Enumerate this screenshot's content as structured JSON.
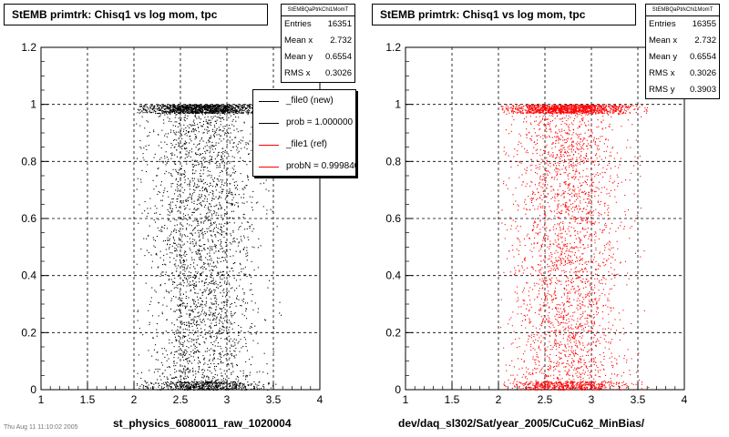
{
  "colors": {
    "file0": "#000000",
    "file1": "#ff0000",
    "grid": "#000000",
    "axis": "#000000"
  },
  "left_panel": {
    "title": "StEMB primtrk: Chisq1 vs log mom, tpc",
    "stats": {
      "name": "StEMBQaPtrkChi1MomT",
      "rows": [
        {
          "label": "Entries",
          "value": "16351"
        },
        {
          "label": "Mean x",
          "value": "2.732"
        },
        {
          "label": "Mean y",
          "value": "0.6554"
        },
        {
          "label": "RMS x",
          "value": "0.3026"
        }
      ]
    },
    "legend": [
      {
        "label": "_file0 (new)",
        "color": "#000000"
      },
      {
        "label": "prob = 1.000000",
        "color": "#000000"
      },
      {
        "label": "_file1 (ref)",
        "color": "#ff0000"
      },
      {
        "label": "probN = 0.999840",
        "color": "#ff0000"
      }
    ],
    "x_title": "st_physics_6080011_raw_1020004"
  },
  "right_panel": {
    "title": "StEMB primtrk: Chisq1 vs log mom, tpc",
    "stats": {
      "name": "StEMBQaPtrkChi1MomT",
      "rows": [
        {
          "label": "Entries",
          "value": "16355"
        },
        {
          "label": "Mean x",
          "value": "2.732"
        },
        {
          "label": "Mean y",
          "value": "0.6554"
        },
        {
          "label": "RMS x",
          "value": "0.3026"
        },
        {
          "label": "RMS y",
          "value": "0.3903"
        }
      ]
    },
    "x_title": "dev/daq_sl302/Sat/year_2005/CuCu62_MinBias/"
  },
  "footer_text": "Thu Aug 11 11:10:02 2005",
  "chart_data": [
    {
      "type": "scatter",
      "title": "StEMB primtrk: Chisq1 vs log mom, tpc",
      "xlabel": "st_physics_6080011_raw_1020004",
      "ylabel": "",
      "xlim": [
        1,
        4
      ],
      "ylim": [
        0,
        1.2
      ],
      "xticks": [
        "1",
        "1.5",
        "2",
        "2.5",
        "3",
        "3.5",
        "4"
      ],
      "yticks": [
        "0",
        "0.2",
        "0.4",
        "0.6",
        "0.8",
        "1",
        "1.2"
      ],
      "grid": true,
      "legend_position": "top-right",
      "series": [
        {
          "name": "_file0 (new)",
          "color": "#000000",
          "entries": 16351,
          "mean_x": 2.732,
          "mean_y": 0.6554,
          "rms_x": 0.3026,
          "x_range": [
            2.02,
            3.62
          ],
          "dense_band_y": [
            0.97,
            1.0
          ],
          "dense_band_y_low": [
            0.0,
            0.03
          ]
        }
      ]
    },
    {
      "type": "scatter",
      "title": "StEMB primtrk: Chisq1 vs log mom, tpc",
      "xlabel": "dev/daq_sl302/Sat/year_2005/CuCu62_MinBias/",
      "ylabel": "",
      "xlim": [
        1,
        4
      ],
      "ylim": [
        0,
        1.2
      ],
      "xticks": [
        "1",
        "1.5",
        "2",
        "2.5",
        "3",
        "3.5",
        "4"
      ],
      "yticks": [
        "0",
        "0.2",
        "0.4",
        "0.6",
        "0.8",
        "1",
        "1.2"
      ],
      "grid": true,
      "series": [
        {
          "name": "_file1 (ref)",
          "color": "#ff0000",
          "entries": 16355,
          "mean_x": 2.732,
          "mean_y": 0.6554,
          "rms_x": 0.3026,
          "rms_y": 0.3903,
          "x_range": [
            2.02,
            3.62
          ],
          "dense_band_y": [
            0.97,
            1.0
          ],
          "dense_band_y_low": [
            0.0,
            0.03
          ]
        }
      ]
    }
  ]
}
